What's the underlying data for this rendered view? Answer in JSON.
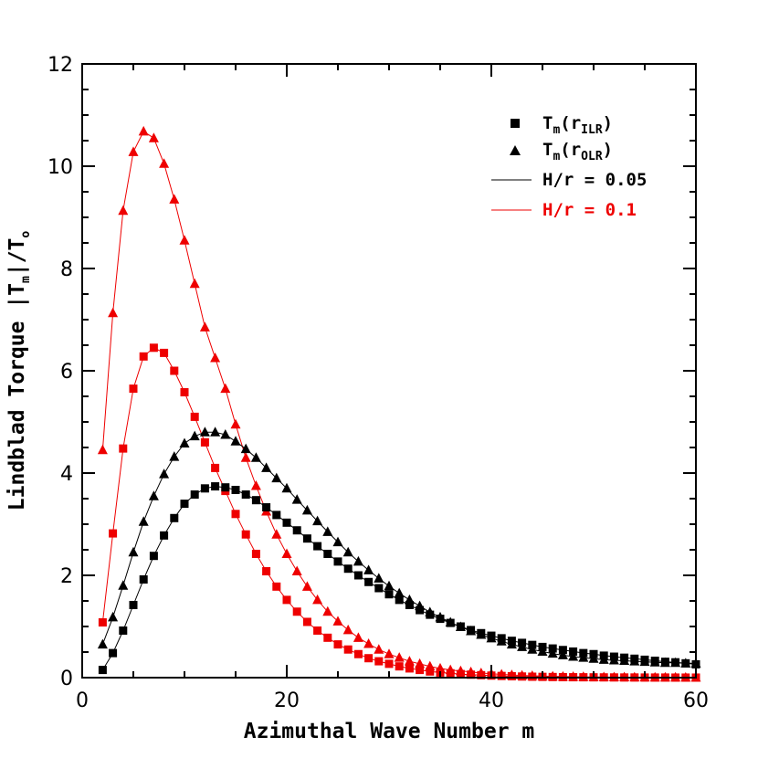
{
  "chart_data": {
    "type": "scatter",
    "xlabel": "Azimuthal Wave Number m",
    "ylabel_parts": {
      "main": "Lindblad Torque |T",
      "sub": "m",
      "mid": "|/T",
      "end_sub": "o"
    },
    "xlim": [
      0,
      60
    ],
    "ylim": [
      0,
      12
    ],
    "x_ticks": [
      "0",
      "20",
      "40",
      "60"
    ],
    "y_ticks": [
      "0",
      "2",
      "4",
      "6",
      "8",
      "10",
      "12"
    ],
    "grid": false,
    "legend_position": "top-right",
    "legend": {
      "square_label": {
        "main": "T",
        "sub1": "m",
        "paren": "(r",
        "sub2": "ILR",
        "close": ")"
      },
      "triangle_label": {
        "main": "T",
        "sub1": "m",
        "paren": "(r",
        "sub2": "OLR",
        "close": ")"
      },
      "black_line_label": "H/r = 0.05",
      "red_line_label": "H/r = 0.1"
    },
    "colors": {
      "black": "#000000",
      "red": "#ee0000"
    },
    "series": [
      {
        "marker": "triangle",
        "color": "red",
        "line": true,
        "x": [
          2,
          3,
          4,
          5,
          6,
          7,
          8,
          9,
          10,
          11,
          12,
          13,
          14,
          15,
          16,
          17,
          18,
          19,
          20,
          21,
          22,
          23,
          24,
          25,
          26,
          27,
          28,
          29,
          30,
          31,
          32,
          33,
          34,
          35,
          36,
          37,
          38,
          39,
          40,
          41,
          42,
          43,
          44,
          45,
          46,
          47,
          48,
          49,
          50,
          51,
          52,
          53,
          54,
          55,
          56,
          57,
          58,
          59,
          60
        ],
        "values": [
          4.45,
          7.13,
          9.13,
          10.28,
          10.68,
          10.55,
          10.05,
          9.35,
          8.55,
          7.7,
          6.85,
          6.25,
          5.65,
          4.95,
          4.3,
          3.75,
          3.25,
          2.8,
          2.42,
          2.08,
          1.78,
          1.52,
          1.29,
          1.1,
          0.93,
          0.78,
          0.66,
          0.55,
          0.46,
          0.39,
          0.32,
          0.27,
          0.22,
          0.18,
          0.15,
          0.13,
          0.11,
          0.09,
          0.075,
          0.062,
          0.052,
          0.043,
          0.036,
          0.03,
          0.025,
          0.021,
          0.018,
          0.015,
          0.013,
          0.011,
          0.009,
          0.008,
          0.007,
          0.006,
          0.005,
          0.004,
          0.004,
          0.003,
          0.003
        ]
      },
      {
        "marker": "square",
        "color": "red",
        "line": true,
        "x": [
          2,
          3,
          4,
          5,
          6,
          7,
          8,
          9,
          10,
          11,
          12,
          13,
          14,
          15,
          16,
          17,
          18,
          19,
          20,
          21,
          22,
          23,
          24,
          25,
          26,
          27,
          28,
          29,
          30,
          31,
          32,
          33,
          34,
          35,
          36,
          37,
          38,
          39,
          40,
          41,
          42,
          43,
          44,
          45,
          46,
          47,
          48,
          49,
          50,
          51,
          52,
          53,
          54,
          55,
          56,
          57,
          58,
          59,
          60
        ],
        "values": [
          1.08,
          2.82,
          4.48,
          5.65,
          6.28,
          6.45,
          6.35,
          6.0,
          5.58,
          5.1,
          4.6,
          4.1,
          3.65,
          3.2,
          2.8,
          2.42,
          2.08,
          1.78,
          1.52,
          1.29,
          1.09,
          0.92,
          0.78,
          0.65,
          0.55,
          0.46,
          0.38,
          0.32,
          0.27,
          0.22,
          0.18,
          0.15,
          0.12,
          0.1,
          0.085,
          0.07,
          0.058,
          0.048,
          0.04,
          0.033,
          0.027,
          0.022,
          0.018,
          0.015,
          0.012,
          0.01,
          0.008,
          0.007,
          0.006,
          0.005,
          0.004,
          0.003,
          0.003,
          0.002,
          0.002,
          0.002,
          0.001,
          0.001,
          0.001
        ]
      },
      {
        "marker": "triangle",
        "color": "black",
        "line": true,
        "x": [
          2,
          3,
          4,
          5,
          6,
          7,
          8,
          9,
          10,
          11,
          12,
          13,
          14,
          15,
          16,
          17,
          18,
          19,
          20,
          21,
          22,
          23,
          24,
          25,
          26,
          27,
          28,
          29,
          30,
          31,
          32,
          33,
          34,
          35,
          36,
          37,
          38,
          39,
          40,
          41,
          42,
          43,
          44,
          45,
          46,
          47,
          48,
          49,
          50,
          51,
          52,
          53,
          54,
          55,
          56,
          57,
          58,
          59,
          60
        ],
        "values": [
          0.65,
          1.18,
          1.8,
          2.45,
          3.05,
          3.55,
          3.98,
          4.32,
          4.58,
          4.72,
          4.8,
          4.8,
          4.75,
          4.62,
          4.47,
          4.3,
          4.1,
          3.9,
          3.7,
          3.48,
          3.27,
          3.06,
          2.85,
          2.65,
          2.45,
          2.27,
          2.1,
          1.94,
          1.79,
          1.65,
          1.52,
          1.4,
          1.28,
          1.18,
          1.08,
          0.99,
          0.91,
          0.84,
          0.77,
          0.71,
          0.65,
          0.6,
          0.55,
          0.51,
          0.47,
          0.44,
          0.41,
          0.39,
          0.37,
          0.35,
          0.34,
          0.33,
          0.32,
          0.31,
          0.3,
          0.29,
          0.29,
          0.28,
          0.28
        ]
      },
      {
        "marker": "square",
        "color": "black",
        "line": true,
        "x": [
          2,
          3,
          4,
          5,
          6,
          7,
          8,
          9,
          10,
          11,
          12,
          13,
          14,
          15,
          16,
          17,
          18,
          19,
          20,
          21,
          22,
          23,
          24,
          25,
          26,
          27,
          28,
          29,
          30,
          31,
          32,
          33,
          34,
          35,
          36,
          37,
          38,
          39,
          40,
          41,
          42,
          43,
          44,
          45,
          46,
          47,
          48,
          49,
          50,
          51,
          52,
          53,
          54,
          55,
          56,
          57,
          58,
          59,
          60
        ],
        "values": [
          0.15,
          0.48,
          0.92,
          1.42,
          1.92,
          2.38,
          2.78,
          3.12,
          3.4,
          3.58,
          3.7,
          3.74,
          3.72,
          3.67,
          3.58,
          3.47,
          3.33,
          3.18,
          3.03,
          2.88,
          2.72,
          2.57,
          2.42,
          2.27,
          2.13,
          2.0,
          1.87,
          1.75,
          1.63,
          1.52,
          1.42,
          1.32,
          1.23,
          1.15,
          1.07,
          1.0,
          0.93,
          0.87,
          0.82,
          0.77,
          0.72,
          0.68,
          0.64,
          0.6,
          0.57,
          0.54,
          0.51,
          0.48,
          0.46,
          0.43,
          0.41,
          0.39,
          0.37,
          0.35,
          0.33,
          0.31,
          0.3,
          0.28,
          0.26
        ]
      }
    ]
  }
}
